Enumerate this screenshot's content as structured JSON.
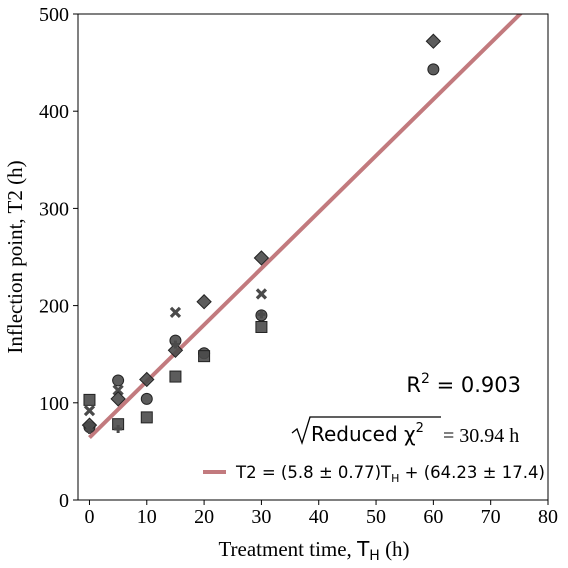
{
  "chart_data": {
    "type": "scatter",
    "xlabel": "Treatment time, ",
    "xlabel_symbol": "T",
    "xlabel_sub": "H",
    "xlabel_unit": " (h)",
    "ylabel": "Inflection point, T2 (h)",
    "xlim": [
      -2,
      80
    ],
    "ylim": [
      0,
      500
    ],
    "xticks": [
      0,
      10,
      20,
      30,
      40,
      50,
      60,
      70,
      80
    ],
    "yticks": [
      0,
      100,
      200,
      300,
      400,
      500
    ],
    "grid": false,
    "point_color": "#4a4a4a",
    "fit_color": "#c27a7e",
    "series": [
      {
        "marker": "circle",
        "points": [
          [
            0,
            75
          ],
          [
            5,
            123
          ],
          [
            10,
            104
          ],
          [
            15,
            164
          ],
          [
            20,
            151
          ],
          [
            30,
            190
          ],
          [
            60,
            443
          ]
        ]
      },
      {
        "marker": "square",
        "points": [
          [
            0,
            103
          ],
          [
            5,
            78
          ],
          [
            10,
            85
          ],
          [
            15,
            127
          ],
          [
            20,
            148
          ],
          [
            30,
            178
          ]
        ]
      },
      {
        "marker": "x",
        "points": [
          [
            0,
            92
          ],
          [
            5,
            113
          ],
          [
            15,
            193
          ],
          [
            30,
            212
          ]
        ]
      },
      {
        "marker": "diamond",
        "points": [
          [
            0,
            77
          ],
          [
            5,
            104
          ],
          [
            10,
            124
          ],
          [
            15,
            154
          ],
          [
            20,
            204
          ],
          [
            30,
            249
          ],
          [
            60,
            472
          ]
        ]
      },
      {
        "marker": "plus",
        "points": [
          [
            0,
            72
          ],
          [
            5,
            73
          ],
          [
            15,
            160
          ],
          [
            30,
            191
          ]
        ]
      }
    ],
    "fit": {
      "slope": 5.8,
      "intercept": 64.23,
      "x_range": [
        0,
        80
      ],
      "legend_prefix": "T2 = (5.8 ± 0.77)T",
      "legend_sub": "H",
      "legend_suffix": " + (64.23 ± 17.4)",
      "legend_placement": "lower-right"
    },
    "annotations": {
      "r2_prefix": "R",
      "r2_sup": "2",
      "r2_suffix": " = 0.903",
      "chi_radicand": "Reduced χ",
      "chi_sup": "2",
      "chi_value": " = 30.94 h"
    }
  }
}
